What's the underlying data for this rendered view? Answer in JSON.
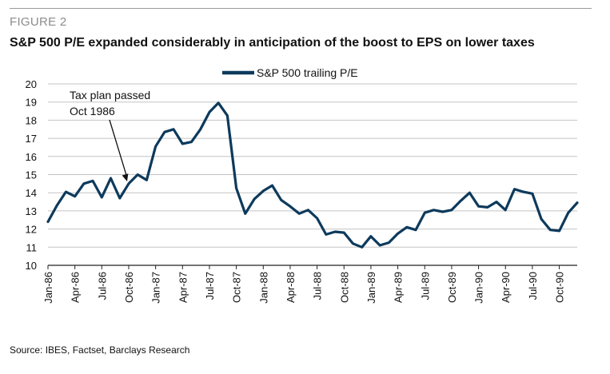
{
  "figure": {
    "label": "FIGURE 2",
    "title": "S&P 500 P/E expanded considerably in anticipation of the boost to EPS on lower taxes",
    "source": "Source: IBES, Factset, Barclays Research"
  },
  "colors": {
    "series": "#0d3a5c",
    "grid": "#c4c4c4",
    "axis": "#222222"
  },
  "chart_data": {
    "type": "line",
    "ylim": [
      10,
      20
    ],
    "yticks": [
      10,
      11,
      12,
      13,
      14,
      15,
      16,
      17,
      18,
      19,
      20
    ],
    "grid": "horizontal",
    "legend": "top-center",
    "x_tick_labels": [
      "Jan-86",
      "Apr-86",
      "Jul-86",
      "Oct-86",
      "Jan-87",
      "Apr-87",
      "Jul-87",
      "Oct-87",
      "Jan-88",
      "Apr-88",
      "Jul-88",
      "Oct-88",
      "Jan-89",
      "Apr-89",
      "Jul-89",
      "Oct-89",
      "Jan-90",
      "Apr-90",
      "Jul-90",
      "Oct-90"
    ],
    "x": [
      "Jan-86",
      "Feb-86",
      "Mar-86",
      "Apr-86",
      "May-86",
      "Jun-86",
      "Jul-86",
      "Aug-86",
      "Sep-86",
      "Oct-86",
      "Nov-86",
      "Dec-86",
      "Jan-87",
      "Feb-87",
      "Mar-87",
      "Apr-87",
      "May-87",
      "Jun-87",
      "Jul-87",
      "Aug-87",
      "Sep-87",
      "Oct-87",
      "Nov-87",
      "Dec-87",
      "Jan-88",
      "Feb-88",
      "Mar-88",
      "Apr-88",
      "May-88",
      "Jun-88",
      "Jul-88",
      "Aug-88",
      "Sep-88",
      "Oct-88",
      "Nov-88",
      "Dec-88",
      "Jan-89",
      "Feb-89",
      "Mar-89",
      "Apr-89",
      "May-89",
      "Jun-89",
      "Jul-89",
      "Aug-89",
      "Sep-89",
      "Oct-89",
      "Nov-89",
      "Dec-89",
      "Jan-90",
      "Feb-90",
      "Mar-90",
      "Apr-90",
      "May-90",
      "Jun-90",
      "Jul-90",
      "Aug-90",
      "Sep-90",
      "Oct-90",
      "Nov-90",
      "Dec-90"
    ],
    "series": [
      {
        "name": "S&P 500 trailing P/E",
        "values": [
          12.4,
          13.3,
          14.05,
          13.8,
          14.5,
          14.65,
          13.75,
          14.8,
          13.7,
          14.5,
          15.0,
          14.7,
          16.55,
          17.35,
          17.5,
          16.7,
          16.8,
          17.5,
          18.45,
          18.95,
          18.25,
          14.25,
          12.85,
          13.65,
          14.1,
          14.4,
          13.6,
          13.25,
          12.85,
          13.05,
          12.6,
          11.7,
          11.85,
          11.8,
          11.2,
          11.0,
          11.6,
          11.1,
          11.25,
          11.75,
          12.1,
          11.95,
          12.9,
          13.05,
          12.95,
          13.05,
          13.55,
          14.0,
          13.25,
          13.2,
          13.5,
          13.05,
          14.2,
          14.05,
          13.95,
          12.55,
          11.95,
          11.9,
          12.9,
          13.45
        ]
      }
    ],
    "annotations": [
      {
        "lines": [
          "Tax plan passed",
          "Oct 1986"
        ],
        "target_x": "Oct-86",
        "target_y": 14.8
      }
    ]
  }
}
